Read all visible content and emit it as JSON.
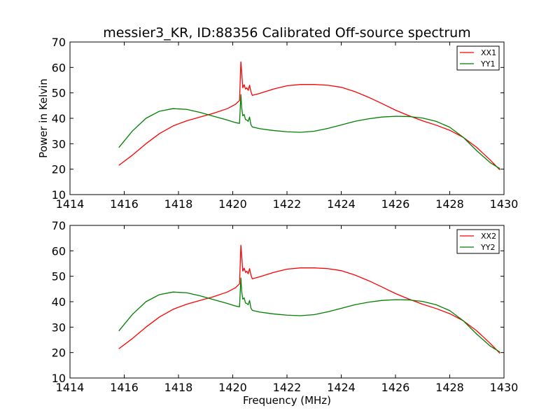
{
  "title": "messier3_KR, ID:88356 Calibrated Off-source spectrum",
  "colors": {
    "red": "#ff0000",
    "green": "#007f00"
  },
  "chart_data": [
    {
      "type": "line",
      "xlabel": "",
      "ylabel": "Power in Kelvin",
      "xlim": [
        1414,
        1430
      ],
      "ylim": [
        10,
        70
      ],
      "xticks": [
        1414,
        1416,
        1418,
        1420,
        1422,
        1424,
        1426,
        1428,
        1430
      ],
      "yticks": [
        10,
        20,
        30,
        40,
        50,
        60,
        70
      ],
      "legend": "top-right",
      "series": [
        {
          "name": "XX1",
          "color": "#ff0000",
          "x": [
            1415.8,
            1416.3,
            1416.8,
            1417.3,
            1417.8,
            1418.3,
            1418.8,
            1419.3,
            1419.8,
            1420.1,
            1420.25,
            1420.3,
            1420.33,
            1420.37,
            1420.42,
            1420.47,
            1420.52,
            1420.57,
            1420.62,
            1420.67,
            1420.72,
            1421.0,
            1421.5,
            1422.0,
            1422.5,
            1423.0,
            1423.5,
            1424.0,
            1424.5,
            1425.0,
            1425.5,
            1426.0,
            1426.5,
            1427.0,
            1427.5,
            1428.0,
            1428.5,
            1429.0,
            1429.5,
            1429.85
          ],
          "y": [
            21.5,
            25.5,
            30.0,
            34.0,
            37.0,
            39.0,
            40.5,
            42.0,
            43.8,
            45.5,
            47.0,
            62.2,
            58.0,
            52.0,
            53.2,
            51.5,
            52.0,
            51.0,
            53.0,
            50.5,
            49.0,
            49.8,
            51.5,
            52.8,
            53.3,
            53.3,
            53.0,
            52.2,
            50.5,
            48.3,
            45.8,
            43.2,
            41.0,
            39.0,
            37.3,
            35.3,
            32.5,
            28.5,
            23.5,
            19.7
          ]
        },
        {
          "name": "YY1",
          "color": "#007f00",
          "x": [
            1415.8,
            1416.3,
            1416.8,
            1417.3,
            1417.8,
            1418.3,
            1418.8,
            1419.3,
            1419.8,
            1420.1,
            1420.25,
            1420.3,
            1420.33,
            1420.37,
            1420.42,
            1420.47,
            1420.52,
            1420.57,
            1420.62,
            1420.67,
            1420.72,
            1421.0,
            1421.5,
            1422.0,
            1422.5,
            1423.0,
            1423.5,
            1424.0,
            1424.5,
            1425.0,
            1425.5,
            1426.0,
            1426.5,
            1427.0,
            1427.5,
            1428.0,
            1428.5,
            1429.0,
            1429.5,
            1429.85
          ],
          "y": [
            28.5,
            35.0,
            40.0,
            42.8,
            43.8,
            43.5,
            42.3,
            40.8,
            39.3,
            38.3,
            38.0,
            49.3,
            44.0,
            41.0,
            41.5,
            39.5,
            39.3,
            38.8,
            40.5,
            37.5,
            36.6,
            35.9,
            35.2,
            34.7,
            34.5,
            34.9,
            36.0,
            37.4,
            38.8,
            39.8,
            40.5,
            40.8,
            40.7,
            40.1,
            38.8,
            36.5,
            32.5,
            27.2,
            22.5,
            20.2
          ]
        }
      ]
    },
    {
      "type": "line",
      "xlabel": "Frequency (MHz)",
      "ylabel": "",
      "xlim": [
        1414,
        1430
      ],
      "ylim": [
        10,
        70
      ],
      "xticks": [
        1414,
        1416,
        1418,
        1420,
        1422,
        1424,
        1426,
        1428,
        1430
      ],
      "yticks": [
        10,
        20,
        30,
        40,
        50,
        60,
        70
      ],
      "legend": "top-right",
      "series": [
        {
          "name": "XX2",
          "color": "#ff0000",
          "x": [
            1415.8,
            1416.3,
            1416.8,
            1417.3,
            1417.8,
            1418.3,
            1418.8,
            1419.3,
            1419.8,
            1420.1,
            1420.25,
            1420.3,
            1420.33,
            1420.37,
            1420.42,
            1420.47,
            1420.52,
            1420.57,
            1420.62,
            1420.67,
            1420.72,
            1421.0,
            1421.5,
            1422.0,
            1422.5,
            1423.0,
            1423.5,
            1424.0,
            1424.5,
            1425.0,
            1425.5,
            1426.0,
            1426.5,
            1427.0,
            1427.5,
            1428.0,
            1428.5,
            1429.0,
            1429.5,
            1429.85
          ],
          "y": [
            21.5,
            25.5,
            30.0,
            34.0,
            37.0,
            39.0,
            40.5,
            42.0,
            43.8,
            45.5,
            47.0,
            62.2,
            58.0,
            52.0,
            53.2,
            51.5,
            52.0,
            51.0,
            53.0,
            50.5,
            49.0,
            49.8,
            51.5,
            52.8,
            53.3,
            53.3,
            53.0,
            52.2,
            50.5,
            48.3,
            45.8,
            43.2,
            41.0,
            39.0,
            37.3,
            35.3,
            32.5,
            28.5,
            23.5,
            19.7
          ]
        },
        {
          "name": "YY2",
          "color": "#007f00",
          "x": [
            1415.8,
            1416.3,
            1416.8,
            1417.3,
            1417.8,
            1418.3,
            1418.8,
            1419.3,
            1419.8,
            1420.1,
            1420.25,
            1420.3,
            1420.33,
            1420.37,
            1420.42,
            1420.47,
            1420.52,
            1420.57,
            1420.62,
            1420.67,
            1420.72,
            1421.0,
            1421.5,
            1422.0,
            1422.5,
            1423.0,
            1423.5,
            1424.0,
            1424.5,
            1425.0,
            1425.5,
            1426.0,
            1426.5,
            1427.0,
            1427.5,
            1428.0,
            1428.5,
            1429.0,
            1429.5,
            1429.85
          ],
          "y": [
            28.5,
            35.0,
            40.0,
            42.8,
            43.8,
            43.5,
            42.3,
            40.8,
            39.3,
            38.3,
            38.0,
            49.3,
            44.0,
            41.0,
            41.5,
            39.5,
            39.3,
            38.8,
            40.5,
            37.5,
            36.6,
            35.9,
            35.2,
            34.7,
            34.5,
            34.9,
            36.0,
            37.4,
            38.8,
            39.8,
            40.5,
            40.8,
            40.7,
            40.1,
            38.8,
            36.5,
            32.5,
            27.2,
            22.5,
            20.2
          ]
        }
      ]
    }
  ]
}
